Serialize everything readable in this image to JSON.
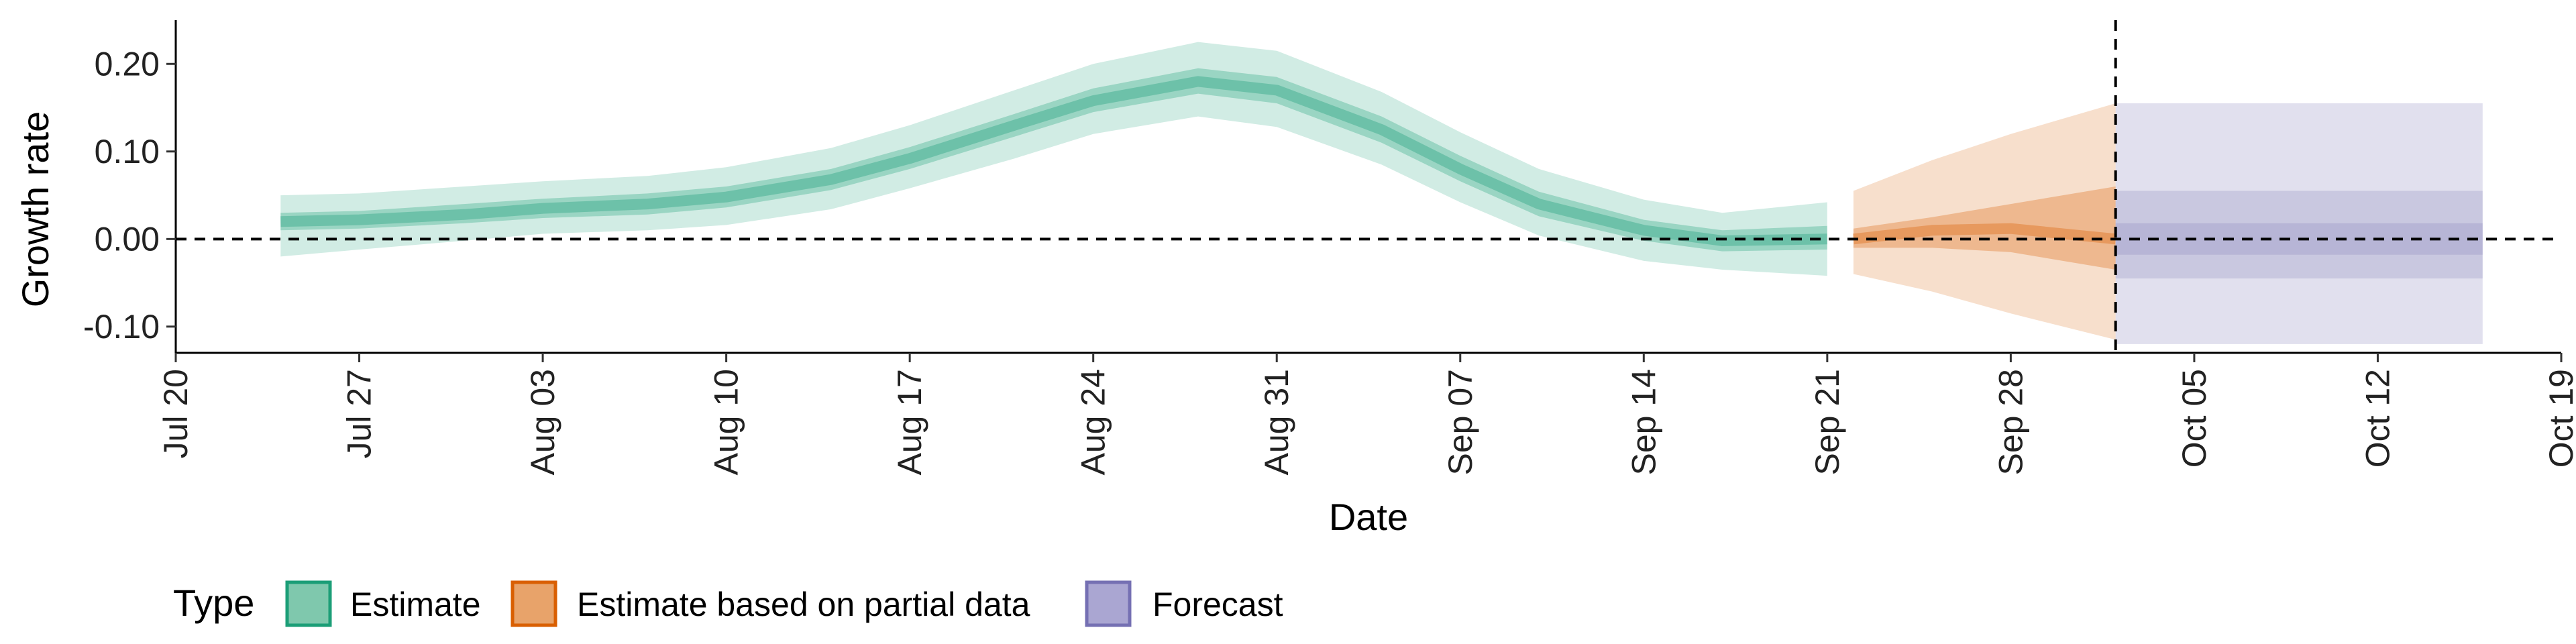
{
  "chart_data": {
    "type": "area",
    "xlabel": "Date",
    "ylabel": "Growth rate",
    "x_axis_type": "date",
    "xlim": [
      "2020-07-20",
      "2020-10-19"
    ],
    "ylim": [
      -0.13,
      0.25
    ],
    "x_ticks": [
      "2020-07-20",
      "2020-07-27",
      "2020-08-03",
      "2020-08-10",
      "2020-08-17",
      "2020-08-24",
      "2020-08-31",
      "2020-09-07",
      "2020-09-14",
      "2020-09-21",
      "2020-09-28",
      "2020-10-05",
      "2020-10-12",
      "2020-10-19"
    ],
    "x_tick_labels": [
      "Jul 20",
      "Jul 27",
      "Aug 03",
      "Aug 10",
      "Aug 17",
      "Aug 24",
      "Aug 31",
      "Sep 07",
      "Sep 14",
      "Sep 21",
      "Sep 28",
      "Oct 05",
      "Oct 12",
      "Oct 19"
    ],
    "y_ticks": [
      -0.1,
      0.0,
      0.1,
      0.2
    ],
    "y_tick_labels": [
      "-0.10",
      "0.00",
      "0.10",
      "0.20"
    ],
    "reference_line_y": 0.0,
    "reference_line_x": "2020-10-02",
    "grid": false,
    "legend": {
      "position": "bottom",
      "title": "Type",
      "entries": [
        {
          "label": "Estimate",
          "fill": "#7fc8ad",
          "stroke": "#1b9e77"
        },
        {
          "label": "Estimate based on partial data",
          "fill": "#e8a36a",
          "stroke": "#d95f02"
        },
        {
          "label": "Forecast",
          "fill": "#aaa6d2",
          "stroke": "#7570b3"
        }
      ]
    },
    "series": [
      {
        "name": "Estimate",
        "color": "#1b9e77",
        "points": [
          {
            "x": "2020-07-24",
            "median": 0.02,
            "lo50": 0.01,
            "hi50": 0.03,
            "lo90": -0.02,
            "hi90": 0.05
          },
          {
            "x": "2020-07-27",
            "median": 0.022,
            "lo50": 0.012,
            "hi50": 0.032,
            "lo90": -0.012,
            "hi90": 0.052
          },
          {
            "x": "2020-07-31",
            "median": 0.028,
            "lo50": 0.018,
            "hi50": 0.04,
            "lo90": -0.002,
            "hi90": 0.06
          },
          {
            "x": "2020-08-03",
            "median": 0.035,
            "lo50": 0.024,
            "hi50": 0.046,
            "lo90": 0.006,
            "hi90": 0.066
          },
          {
            "x": "2020-08-07",
            "median": 0.04,
            "lo50": 0.028,
            "hi50": 0.052,
            "lo90": 0.01,
            "hi90": 0.072
          },
          {
            "x": "2020-08-10",
            "median": 0.048,
            "lo50": 0.036,
            "hi50": 0.06,
            "lo90": 0.016,
            "hi90": 0.082
          },
          {
            "x": "2020-08-14",
            "median": 0.068,
            "lo50": 0.056,
            "hi50": 0.08,
            "lo90": 0.034,
            "hi90": 0.104
          },
          {
            "x": "2020-08-17",
            "median": 0.092,
            "lo50": 0.08,
            "hi50": 0.105,
            "lo90": 0.058,
            "hi90": 0.13
          },
          {
            "x": "2020-08-21",
            "median": 0.13,
            "lo50": 0.117,
            "hi50": 0.143,
            "lo90": 0.092,
            "hi90": 0.17
          },
          {
            "x": "2020-08-24",
            "median": 0.158,
            "lo50": 0.145,
            "hi50": 0.172,
            "lo90": 0.12,
            "hi90": 0.2
          },
          {
            "x": "2020-08-28",
            "median": 0.18,
            "lo50": 0.166,
            "hi50": 0.195,
            "lo90": 0.14,
            "hi90": 0.225
          },
          {
            "x": "2020-08-31",
            "median": 0.17,
            "lo50": 0.155,
            "hi50": 0.185,
            "lo90": 0.128,
            "hi90": 0.215
          },
          {
            "x": "2020-09-04",
            "median": 0.125,
            "lo50": 0.11,
            "hi50": 0.14,
            "lo90": 0.085,
            "hi90": 0.168
          },
          {
            "x": "2020-09-07",
            "median": 0.08,
            "lo50": 0.066,
            "hi50": 0.095,
            "lo90": 0.042,
            "hi90": 0.122
          },
          {
            "x": "2020-09-10",
            "median": 0.04,
            "lo50": 0.026,
            "hi50": 0.054,
            "lo90": 0.004,
            "hi90": 0.08
          },
          {
            "x": "2020-09-14",
            "median": 0.01,
            "lo50": -0.002,
            "hi50": 0.022,
            "lo90": -0.025,
            "hi90": 0.045
          },
          {
            "x": "2020-09-17",
            "median": -0.002,
            "lo50": -0.014,
            "hi50": 0.01,
            "lo90": -0.035,
            "hi90": 0.03
          },
          {
            "x": "2020-09-21",
            "median": 0.0,
            "lo50": -0.012,
            "hi50": 0.015,
            "lo90": -0.042,
            "hi90": 0.042
          }
        ]
      },
      {
        "name": "Estimate based on partial data",
        "color": "#d95f02",
        "points": [
          {
            "x": "2020-09-22",
            "median": 0.0,
            "lo50": -0.01,
            "hi50": 0.012,
            "lo90": -0.04,
            "hi90": 0.055
          },
          {
            "x": "2020-09-25",
            "median": 0.01,
            "lo50": -0.01,
            "hi50": 0.025,
            "lo90": -0.06,
            "hi90": 0.09
          },
          {
            "x": "2020-09-28",
            "median": 0.012,
            "lo50": -0.015,
            "hi50": 0.04,
            "lo90": -0.085,
            "hi90": 0.12
          },
          {
            "x": "2020-10-02",
            "median": 0.0,
            "lo50": -0.035,
            "hi50": 0.06,
            "lo90": -0.115,
            "hi90": 0.155
          }
        ]
      },
      {
        "name": "Forecast",
        "color": "#7570b3",
        "points": [
          {
            "x": "2020-10-02",
            "median": 0.0,
            "lo20": -0.018,
            "hi20": 0.018,
            "lo50": -0.045,
            "hi50": 0.055,
            "lo90": -0.12,
            "hi90": 0.155
          },
          {
            "x": "2020-10-16",
            "median": 0.0,
            "lo20": -0.018,
            "hi20": 0.018,
            "lo50": -0.045,
            "hi50": 0.055,
            "lo90": -0.12,
            "hi90": 0.155
          }
        ]
      }
    ]
  }
}
